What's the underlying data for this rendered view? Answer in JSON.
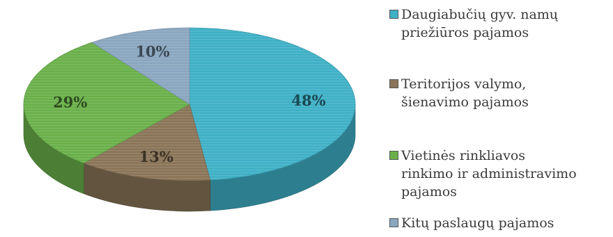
{
  "chart_data": {
    "type": "pie",
    "title": "",
    "series": [
      {
        "name": "Daugiabučių gyv. namų priežiūros pajamos",
        "value": 48,
        "label": "48%",
        "color": "#3fb0c6"
      },
      {
        "name": "Teritorijos valymo, šienavimo pajamos",
        "value": 13,
        "label": "13%",
        "color": "#8a7458"
      },
      {
        "name": "Vietinės rinkliavos rinkimo ir administravimo pajamos",
        "value": 29,
        "label": "29%",
        "color": "#6ab04a"
      },
      {
        "name": "Kitų paslaugų pajamos",
        "value": 10,
        "label": "10%",
        "color": "#8aa6bf"
      }
    ],
    "legend_position": "right"
  },
  "legend": {
    "items": [
      {
        "label_lines": [
          "Daugiabučių gyv.  namų",
          "priežiūros pajamos"
        ],
        "color": "#3fb0c6"
      },
      {
        "label_lines": [
          "Teritorijos valymo,",
          "šienavimo pajamos"
        ],
        "color": "#8a7458"
      },
      {
        "label_lines": [
          "Vietinės rinkliavos",
          "rinkimo ir administravimo",
          "pajamos"
        ],
        "color": "#6ab04a"
      },
      {
        "label_lines": [
          "Kitų paslaugų pajamos"
        ],
        "color": "#8aa6bf"
      }
    ]
  }
}
